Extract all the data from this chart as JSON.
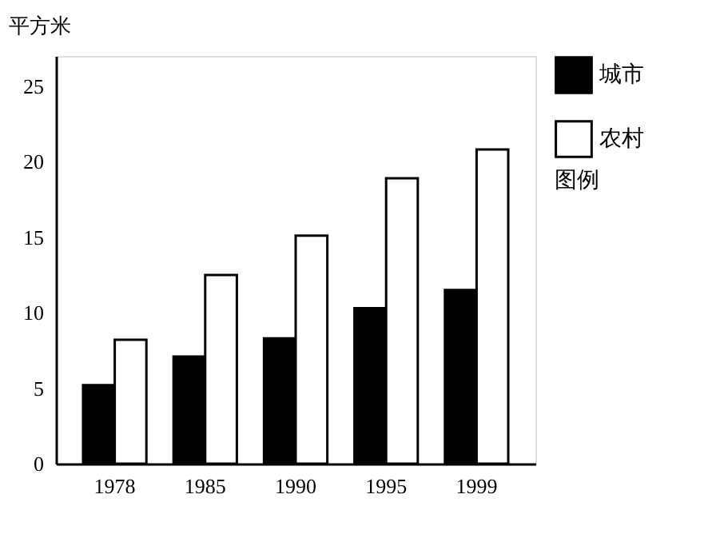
{
  "chart_data": {
    "type": "bar",
    "ylabel": "平方米",
    "legend_title": "图例",
    "legend": "right",
    "categories": [
      "1978",
      "1985",
      "1990",
      "1995",
      "1999"
    ],
    "series": [
      {
        "name": "城市",
        "color": "#000000",
        "values": [
          5.2,
          7.1,
          8.3,
          10.3,
          11.5
        ]
      },
      {
        "name": "农村",
        "color": "#ffffff",
        "values": [
          8.2,
          12.5,
          15.1,
          18.9,
          20.8
        ]
      }
    ],
    "ylim": [
      0,
      27
    ],
    "yticks": [
      0,
      5,
      10,
      15,
      20,
      25
    ]
  }
}
